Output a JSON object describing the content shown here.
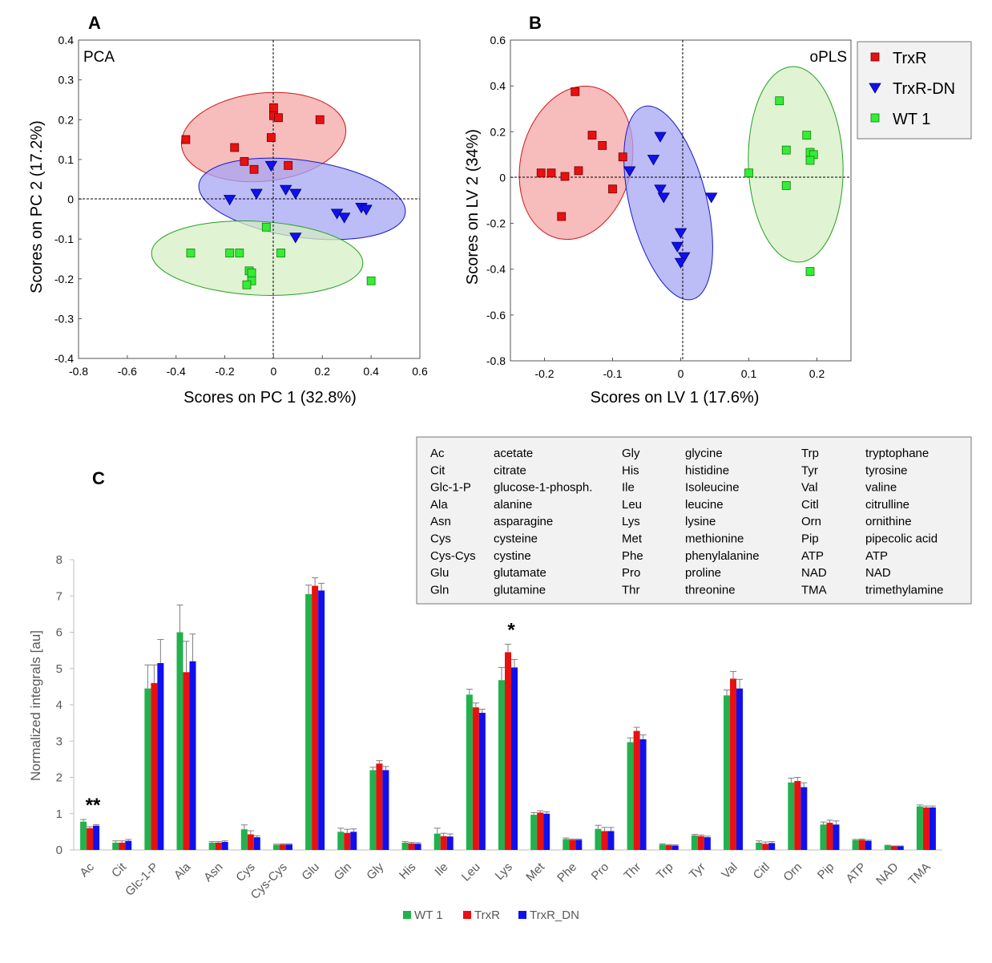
{
  "colors": {
    "wt": "#22b14c",
    "wt_marker": "#33ee33",
    "trxr": "#e81010",
    "trxr_dn": "#1010ee",
    "ell_red": "#f4a6a6",
    "ell_blue": "#a6a6f4",
    "ell_green": "#d6efc3"
  },
  "panel_labels": {
    "a": "A",
    "b": "B",
    "c": "C"
  },
  "legend_ab": [
    "TrxR",
    "TrxR-DN",
    "WT 1"
  ],
  "chart_data": [
    {
      "type": "scatter",
      "panel": "A",
      "inner_label": "PCA",
      "xlabel": "Scores on PC 1 (32.8%)",
      "ylabel": "Scores on PC 2 (17.2%)",
      "xlim": [
        -0.8,
        0.6
      ],
      "ylim": [
        -0.4,
        0.4
      ],
      "xticks": [
        "-0.8",
        "-0.6",
        "-0.4",
        "-0.2",
        "0",
        "0.2",
        "0.4",
        "0.6"
      ],
      "yticks": [
        "0.4",
        "0.3",
        "0.2",
        "0.1",
        "0",
        "-0.1",
        "-0.2",
        "-0.3",
        "-0.4"
      ],
      "series": [
        {
          "name": "TrxR",
          "marker": "square",
          "points": [
            [
              -0.36,
              0.15
            ],
            [
              -0.16,
              0.13
            ],
            [
              -0.12,
              0.095
            ],
            [
              -0.08,
              0.075
            ],
            [
              -0.01,
              0.155
            ],
            [
              0.0,
              0.23
            ],
            [
              0.0,
              0.21
            ],
            [
              0.02,
              0.205
            ],
            [
              0.06,
              0.085
            ],
            [
              0.19,
              0.2
            ]
          ]
        },
        {
          "name": "TrxR-DN",
          "marker": "triangle",
          "points": [
            [
              -0.18,
              0.0
            ],
            [
              -0.07,
              0.015
            ],
            [
              -0.01,
              0.085
            ],
            [
              0.05,
              0.025
            ],
            [
              0.09,
              0.015
            ],
            [
              0.09,
              -0.095
            ],
            [
              0.26,
              -0.035
            ],
            [
              0.29,
              -0.045
            ],
            [
              0.36,
              -0.02
            ],
            [
              0.38,
              -0.025
            ]
          ]
        },
        {
          "name": "WT 1",
          "marker": "square",
          "points": [
            [
              -0.34,
              -0.135
            ],
            [
              -0.18,
              -0.135
            ],
            [
              -0.14,
              -0.135
            ],
            [
              -0.1,
              -0.18
            ],
            [
              -0.09,
              -0.185
            ],
            [
              -0.09,
              -0.205
            ],
            [
              -0.11,
              -0.215
            ],
            [
              -0.03,
              -0.07
            ],
            [
              0.03,
              -0.135
            ],
            [
              0.4,
              -0.205
            ]
          ]
        }
      ]
    },
    {
      "type": "scatter",
      "panel": "B",
      "inner_label": "oPLS",
      "xlabel": "Scores on LV 1 (17.6%)",
      "ylabel": "Scores on LV 2 (34%)",
      "xlim": [
        -0.25,
        0.25
      ],
      "ylim": [
        -0.8,
        0.6
      ],
      "xticks": [
        "-0.2",
        "-0.1",
        "0",
        "0.1",
        "0.2"
      ],
      "yticks": [
        "0.6",
        "0.4",
        "0.2",
        "0",
        "-0.2",
        "-0.4",
        "-0.6",
        "-0.8"
      ],
      "series": [
        {
          "name": "TrxR",
          "marker": "square",
          "points": [
            [
              -0.155,
              0.375
            ],
            [
              -0.13,
              0.185
            ],
            [
              -0.115,
              0.14
            ],
            [
              -0.085,
              0.09
            ],
            [
              -0.1,
              -0.05
            ],
            [
              -0.205,
              0.02
            ],
            [
              -0.19,
              0.02
            ],
            [
              -0.17,
              0.005
            ],
            [
              -0.15,
              0.03
            ],
            [
              -0.175,
              -0.17
            ]
          ]
        },
        {
          "name": "TrxR-DN",
          "marker": "triangle",
          "points": [
            [
              -0.075,
              0.03
            ],
            [
              -0.03,
              0.18
            ],
            [
              -0.04,
              0.08
            ],
            [
              -0.03,
              -0.05
            ],
            [
              -0.025,
              -0.085
            ],
            [
              0.045,
              -0.085
            ],
            [
              0.0,
              -0.24
            ],
            [
              -0.005,
              -0.3
            ],
            [
              0.005,
              -0.345
            ],
            [
              0.0,
              -0.37
            ]
          ]
        },
        {
          "name": "WT 1",
          "marker": "square",
          "points": [
            [
              0.1,
              0.02
            ],
            [
              0.145,
              0.335
            ],
            [
              0.155,
              0.12
            ],
            [
              0.155,
              -0.035
            ],
            [
              0.185,
              0.185
            ],
            [
              0.19,
              0.11
            ],
            [
              0.195,
              0.1
            ],
            [
              0.19,
              0.075
            ],
            [
              0.19,
              -0.41
            ]
          ]
        }
      ]
    },
    {
      "type": "bar",
      "panel": "C",
      "ylabel": "Normalized integrals [au]",
      "ylim": [
        0,
        8
      ],
      "yticks": [
        "0",
        "1",
        "2",
        "3",
        "4",
        "5",
        "6",
        "7",
        "8"
      ],
      "categories": [
        "Ac",
        "Cit",
        "Glc-1-P",
        "Ala",
        "Asn",
        "Cys",
        "Cys-Cys",
        "Glu",
        "Gln",
        "Gly",
        "His",
        "Ile",
        "Leu",
        "Lys",
        "Met",
        "Phe",
        "Pro",
        "Thr",
        "Trp",
        "Tyr",
        "Val",
        "Citl",
        "Orn",
        "Pip",
        "ATP",
        "NAD",
        "TMA"
      ],
      "series": [
        {
          "name": "WT 1",
          "values": [
            0.78,
            0.2,
            4.45,
            6.0,
            0.2,
            0.57,
            0.14,
            7.05,
            0.5,
            2.2,
            0.2,
            0.45,
            4.28,
            4.68,
            0.97,
            0.3,
            0.58,
            2.97,
            0.15,
            0.4,
            4.26,
            0.2,
            1.86,
            0.7,
            0.27,
            0.12,
            1.2
          ],
          "errors": [
            0.06,
            0.05,
            0.65,
            0.75,
            0.03,
            0.12,
            0.02,
            0.25,
            0.1,
            0.08,
            0.03,
            0.15,
            0.15,
            0.35,
            0.06,
            0.03,
            0.1,
            0.12,
            0.02,
            0.03,
            0.15,
            0.05,
            0.12,
            0.07,
            0.02,
            0.01,
            0.04
          ]
        },
        {
          "name": "TrxR",
          "values": [
            0.6,
            0.2,
            4.6,
            4.9,
            0.2,
            0.43,
            0.15,
            7.28,
            0.47,
            2.38,
            0.18,
            0.38,
            3.93,
            5.45,
            1.03,
            0.28,
            0.52,
            3.28,
            0.13,
            0.38,
            4.72,
            0.17,
            1.9,
            0.75,
            0.28,
            0.1,
            1.17
          ],
          "errors": [
            0.04,
            0.05,
            0.5,
            0.85,
            0.03,
            0.1,
            0.02,
            0.22,
            0.1,
            0.08,
            0.03,
            0.08,
            0.12,
            0.22,
            0.05,
            0.02,
            0.1,
            0.1,
            0.02,
            0.03,
            0.2,
            0.05,
            0.1,
            0.07,
            0.02,
            0.01,
            0.04
          ]
        },
        {
          "name": "TrxR_DN",
          "values": [
            0.67,
            0.25,
            5.15,
            5.2,
            0.22,
            0.35,
            0.15,
            7.15,
            0.5,
            2.2,
            0.17,
            0.37,
            3.78,
            5.03,
            1.0,
            0.28,
            0.52,
            3.05,
            0.12,
            0.35,
            4.45,
            0.19,
            1.73,
            0.7,
            0.25,
            0.1,
            1.17
          ],
          "errors": [
            0.03,
            0.04,
            0.65,
            0.75,
            0.03,
            0.04,
            0.02,
            0.2,
            0.08,
            0.1,
            0.03,
            0.07,
            0.1,
            0.22,
            0.05,
            0.02,
            0.1,
            0.12,
            0.02,
            0.03,
            0.25,
            0.04,
            0.12,
            0.1,
            0.02,
            0.01,
            0.04
          ]
        }
      ],
      "annotations": [
        {
          "category": "Ac",
          "text": "**"
        },
        {
          "category": "Lys",
          "text": "*"
        }
      ],
      "legend": [
        "WT 1",
        "TrxR",
        "TrxR_DN"
      ]
    }
  ],
  "abbreviations": [
    [
      [
        "Ac",
        "acetate"
      ],
      [
        "Cit",
        "citrate"
      ],
      [
        "Glc-1-P",
        "glucose-1-phosph."
      ],
      [
        "Ala",
        "alanine"
      ],
      [
        "Asn",
        "asparagine"
      ],
      [
        "Cys",
        "cysteine"
      ],
      [
        "Cys-Cys",
        "cystine"
      ],
      [
        "Glu",
        "glutamate"
      ],
      [
        "Gln",
        "glutamine"
      ]
    ],
    [
      [
        "Gly",
        "glycine"
      ],
      [
        "His",
        "histidine"
      ],
      [
        "Ile",
        "Isoleucine"
      ],
      [
        "Leu",
        "leucine"
      ],
      [
        "Lys",
        "lysine"
      ],
      [
        "Met",
        "methionine"
      ],
      [
        "Phe",
        "phenylalanine"
      ],
      [
        "Pro",
        "proline"
      ],
      [
        "Thr",
        "threonine"
      ]
    ],
    [
      [
        "Trp",
        "tryptophane"
      ],
      [
        "Tyr",
        "tyrosine"
      ],
      [
        "Val",
        "valine"
      ],
      [
        "Citl",
        "citrulline"
      ],
      [
        "Orn",
        "ornithine"
      ],
      [
        "Pip",
        "pipecolic acid"
      ],
      [
        "ATP",
        "ATP"
      ],
      [
        "NAD",
        "NAD"
      ],
      [
        "TMA",
        "trimethylamine"
      ]
    ]
  ]
}
